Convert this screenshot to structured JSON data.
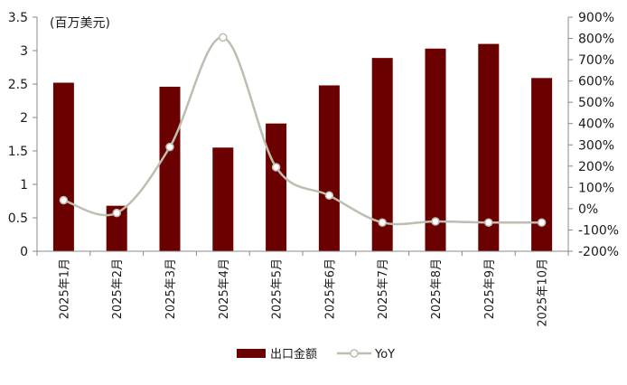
{
  "chart_data": {
    "type": "bar",
    "categories": [
      "2025年1月",
      "2025年2月",
      "2025年3月",
      "2025年4月",
      "2025年5月",
      "2025年6月",
      "2025年7月",
      "2025年8月",
      "2025年9月",
      "2025年10月"
    ],
    "series": [
      {
        "name": "出口金额",
        "type": "bar",
        "axis": "left",
        "color": "#6b0000",
        "values": [
          2.52,
          0.68,
          2.46,
          1.55,
          1.91,
          2.48,
          2.89,
          3.03,
          3.1,
          2.59
        ]
      },
      {
        "name": "YoY",
        "type": "line",
        "axis": "right",
        "color": "#bfbcb0",
        "values": [
          0.4,
          -0.2,
          2.9,
          8.05,
          1.95,
          0.62,
          -0.65,
          -0.6,
          -0.65,
          -0.65
        ]
      }
    ],
    "y_left": {
      "unit": "(百万美元)",
      "ylim": [
        0,
        3.5
      ],
      "ticks": [
        0,
        0.5,
        1,
        1.5,
        2,
        2.5,
        3,
        3.5
      ],
      "tick_labels": [
        "0",
        "0.5",
        "1",
        "1.5",
        "2",
        "2.5",
        "3",
        "3.5"
      ]
    },
    "y_right": {
      "ylim": [
        -2,
        9
      ],
      "ticks": [
        -2,
        -1,
        0,
        1,
        2,
        3,
        4,
        5,
        6,
        7,
        8,
        9
      ],
      "tick_labels": [
        "-200%",
        "-100%",
        "0%",
        "100%",
        "200%",
        "300%",
        "400%",
        "500%",
        "600%",
        "700%",
        "800%",
        "900%"
      ]
    },
    "grid": false,
    "legend_position": "bottom-center"
  }
}
